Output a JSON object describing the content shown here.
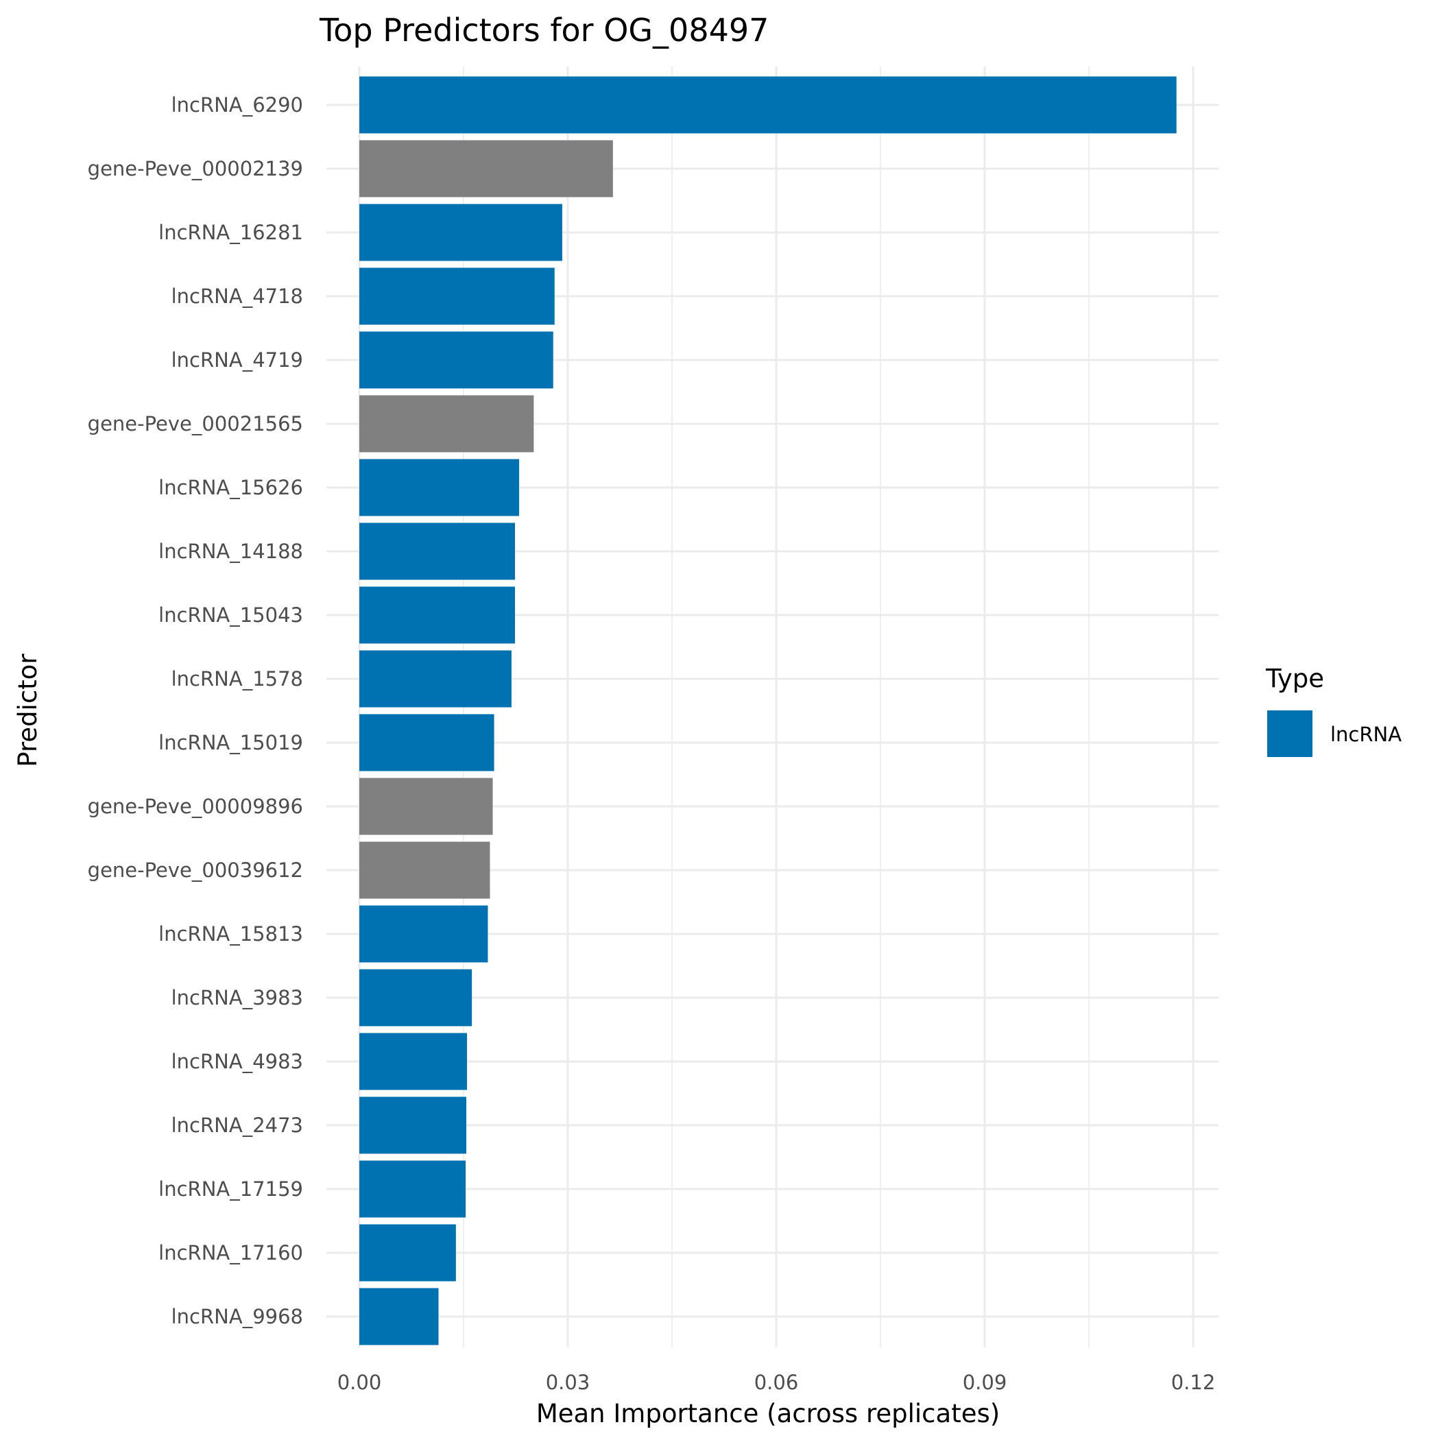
{
  "chart_data": {
    "type": "bar",
    "orientation": "horizontal",
    "title": "Top Predictors for OG_08497",
    "xlabel": "Mean Importance (across replicates)",
    "ylabel": "Predictor",
    "xlim": [
      0,
      0.12
    ],
    "xticks": [
      "0.00",
      "0.03",
      "0.06",
      "0.09",
      "0.12"
    ],
    "xtick_values": [
      0,
      0.03,
      0.06,
      0.09,
      0.12
    ],
    "grid": true,
    "categories": [
      "lncRNA_6290",
      "gene-Peve_00002139",
      "lncRNA_16281",
      "lncRNA_4718",
      "lncRNA_4719",
      "gene-Peve_00021565",
      "lncRNA_15626",
      "lncRNA_14188",
      "lncRNA_15043",
      "lncRNA_1578",
      "lncRNA_15019",
      "gene-Peve_00009896",
      "gene-Peve_00039612",
      "lncRNA_15813",
      "lncRNA_3983",
      "lncRNA_4983",
      "lncRNA_2473",
      "lncRNA_17159",
      "lncRNA_17160",
      "lncRNA_9968"
    ],
    "values": [
      0.1176,
      0.0365,
      0.0292,
      0.0281,
      0.0279,
      0.0251,
      0.023,
      0.0224,
      0.0224,
      0.0219,
      0.0194,
      0.0192,
      0.0188,
      0.0185,
      0.0162,
      0.0155,
      0.0154,
      0.0153,
      0.0139,
      0.0114
    ],
    "types": [
      "lncRNA",
      "gene",
      "lncRNA",
      "lncRNA",
      "lncRNA",
      "gene",
      "lncRNA",
      "lncRNA",
      "lncRNA",
      "lncRNA",
      "lncRNA",
      "gene",
      "gene",
      "lncRNA",
      "lncRNA",
      "lncRNA",
      "lncRNA",
      "lncRNA",
      "lncRNA",
      "lncRNA"
    ],
    "legend": {
      "title": "Type",
      "entries": [
        {
          "label": "lncRNA",
          "color": "#0072B2"
        }
      ],
      "placement": "right"
    },
    "colors": {
      "lncRNA": "#0072B2",
      "gene": "#808080"
    }
  }
}
